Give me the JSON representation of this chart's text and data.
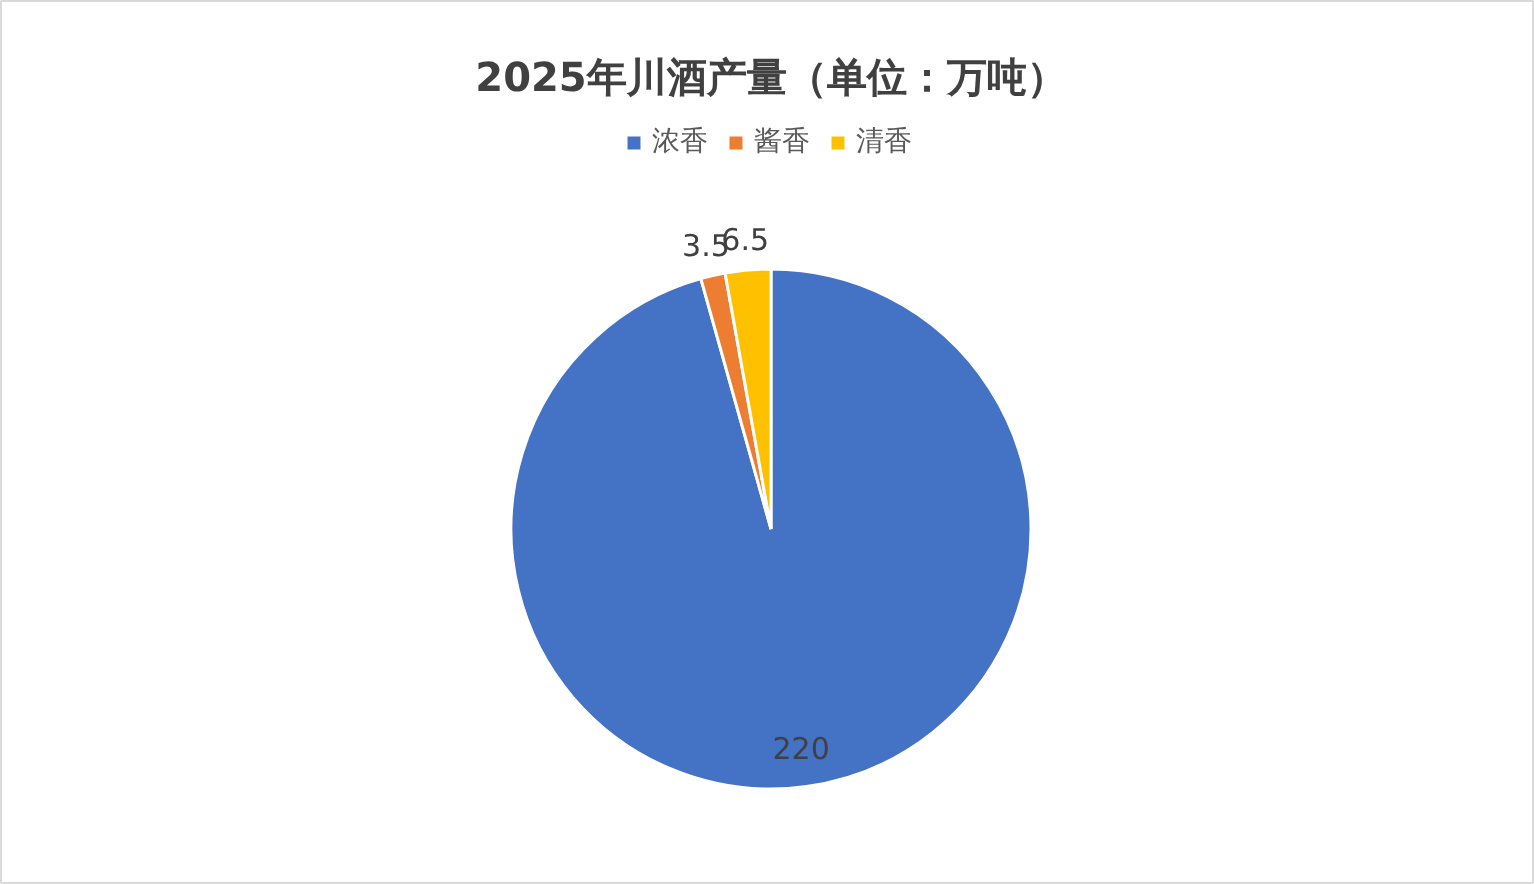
{
  "chart_data": {
    "type": "pie",
    "title": "2025年川酒产量（单位：万吨）",
    "categories": [
      "浓香",
      "酱香",
      "清香"
    ],
    "values": [
      220,
      3.5,
      6.5
    ],
    "colors": [
      "#4472c4",
      "#ed7d31",
      "#ffc000"
    ],
    "legend": "top",
    "data_labels": true
  }
}
